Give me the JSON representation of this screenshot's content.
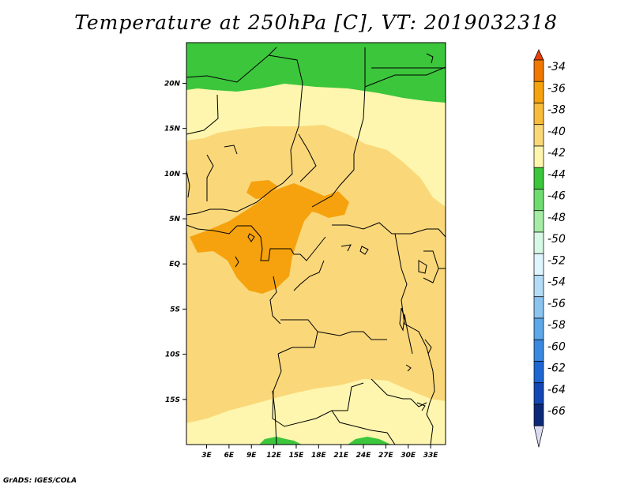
{
  "title": "Temperature at 250hPa [C], VT: 2019032318",
  "credit": "GrADS: IGES/COLA",
  "map": {
    "variable": "Temperature",
    "level": "250hPa",
    "units": "C",
    "valid_time": "2019032318",
    "lat_labels": [
      "20N",
      "15N",
      "10N",
      "5N",
      "EQ",
      "5S",
      "10S",
      "15S"
    ],
    "lat_values": [
      20,
      15,
      10,
      5,
      0,
      -5,
      -10,
      -15
    ],
    "lon_labels": [
      "3E",
      "6E",
      "9E",
      "12E",
      "15E",
      "18E",
      "21E",
      "24E",
      "27E",
      "30E",
      "33E"
    ],
    "lon_values": [
      3,
      6,
      9,
      12,
      15,
      18,
      21,
      24,
      27,
      30,
      33
    ],
    "lat_range": [
      -20,
      24.5
    ],
    "lon_range": [
      0.3,
      35
    ]
  },
  "colorbar": {
    "labels": [
      "-34",
      "-36",
      "-38",
      "-40",
      "-42",
      "-44",
      "-46",
      "-48",
      "-50",
      "-52",
      "-54",
      "-56",
      "-58",
      "-60",
      "-62",
      "-64",
      "-66"
    ],
    "colors": [
      "#e8400c",
      "#f07800",
      "#f6a20e",
      "#f8bc3c",
      "#fad87a",
      "#fef6ae",
      "#3cc63c",
      "#6fdc6f",
      "#a6eca6",
      "#d6f8e4",
      "#e0f6fe",
      "#b4dcf6",
      "#8cc4f0",
      "#5ca8e8",
      "#3a88e0",
      "#1e66d2",
      "#1446b4",
      "#0c2878",
      "#dadcf4"
    ]
  },
  "colors": {
    "band_m38": "#f6a20e",
    "band_m40": "#f8bc3c",
    "band_m42": "#fad87a",
    "band_m44": "#fef6ae",
    "band_m46": "#3cc63c"
  }
}
